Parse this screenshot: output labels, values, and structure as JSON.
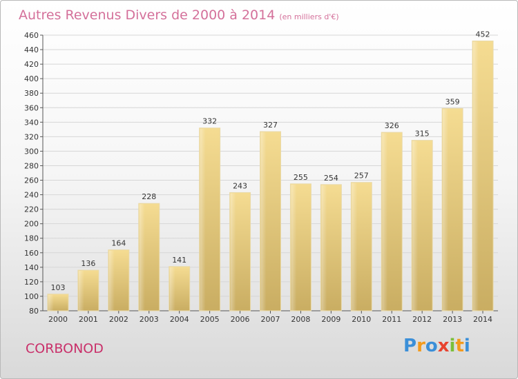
{
  "title_main": "Autres Revenus Divers de 2000 à 2014",
  "title_unit": "(en milliers d'€)",
  "city": "CORBONOD",
  "logo": {
    "letters": [
      "P",
      "r",
      "o",
      "x",
      "i",
      "t",
      "i"
    ],
    "colors": [
      "#3b8fd8",
      "#f39a1c",
      "#3b8fd8",
      "#e8432f",
      "#7bbf3a",
      "#f39a1c",
      "#3b8fd8"
    ]
  },
  "chart_data": {
    "type": "bar",
    "categories": [
      "2000",
      "2001",
      "2002",
      "2003",
      "2004",
      "2005",
      "2006",
      "2007",
      "2008",
      "2009",
      "2010",
      "2011",
      "2012",
      "2013",
      "2014"
    ],
    "values": [
      103,
      136,
      164,
      228,
      141,
      332,
      243,
      327,
      255,
      254,
      257,
      326,
      315,
      359,
      452
    ],
    "ylim": [
      80,
      460
    ],
    "yticks": [
      80,
      100,
      120,
      140,
      160,
      180,
      200,
      220,
      240,
      260,
      280,
      300,
      320,
      340,
      360,
      380,
      400,
      420,
      440,
      460
    ],
    "grid": true,
    "bar_color": "#eccf7e"
  }
}
